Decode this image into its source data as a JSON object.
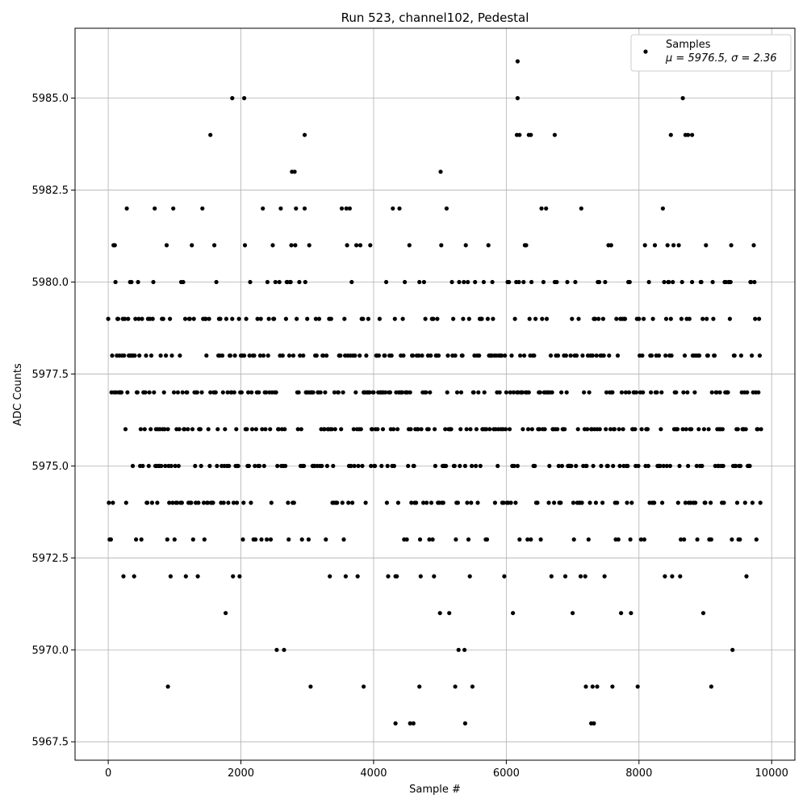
{
  "chart_data": {
    "type": "scatter",
    "title": "Run 523, channel102, Pedestal",
    "xlabel": "Sample #",
    "ylabel": "ADC Counts",
    "xlim": [
      -500,
      10350
    ],
    "ylim": [
      5967.0,
      5986.9
    ],
    "xticks": [
      0,
      2000,
      4000,
      6000,
      8000,
      10000
    ],
    "xtick_labels": [
      "0",
      "2000",
      "4000",
      "6000",
      "8000",
      "10000"
    ],
    "yticks": [
      5967.5,
      5970.0,
      5972.5,
      5975.0,
      5977.5,
      5980.0,
      5982.5,
      5985.0
    ],
    "ytick_labels": [
      "5967.5",
      "5970.0",
      "5972.5",
      "5975.0",
      "5977.5",
      "5980.0",
      "5982.5",
      "5985.0"
    ],
    "grid": true,
    "legend_position": "top-right",
    "legend": {
      "label": "Samples",
      "stats": "μ = 5976.5, σ = 2.36"
    },
    "marker_color": "#000000",
    "series": [
      {
        "name": "Samples",
        "x_range": [
          0,
          9840
        ],
        "n": 9841,
        "mean": 5976.5,
        "std": 2.36,
        "points": [
          [
            1870,
            5985
          ],
          [
            2050,
            5985
          ],
          [
            6170,
            5985
          ],
          [
            8660,
            5985
          ],
          [
            6170,
            5986
          ],
          [
            1540,
            5984
          ],
          [
            2960,
            5984
          ],
          [
            6160,
            5984
          ],
          [
            6200,
            5984
          ],
          [
            6340,
            5984
          ],
          [
            6370,
            5984
          ],
          [
            6730,
            5984
          ],
          [
            8480,
            5984
          ],
          [
            8700,
            5984
          ],
          [
            8740,
            5984
          ],
          [
            8800,
            5984
          ],
          [
            4330,
            5968
          ],
          [
            4550,
            5968
          ],
          [
            4600,
            5968
          ],
          [
            5380,
            5968
          ],
          [
            7280,
            5968
          ],
          [
            7320,
            5968
          ],
          [
            900,
            5969
          ],
          [
            3850,
            5969
          ],
          [
            4690,
            5969
          ],
          [
            5230,
            5969
          ],
          [
            7200,
            5969
          ],
          [
            7300,
            5969
          ],
          [
            7370,
            5969
          ],
          [
            7600,
            5969
          ],
          [
            9090,
            5969
          ]
        ]
      }
    ]
  }
}
